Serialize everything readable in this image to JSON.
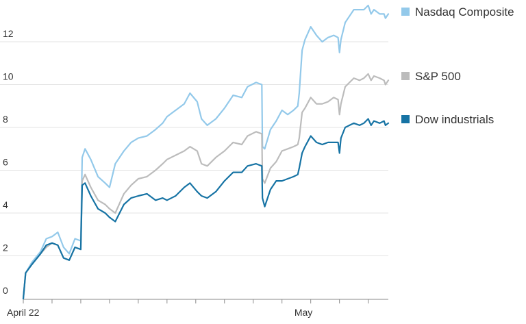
{
  "chart_data": {
    "type": "line",
    "title": "",
    "xlabel": "",
    "ylabel": "",
    "ylim": [
      0,
      14
    ],
    "y_ticks": [
      0,
      2,
      4,
      6,
      8,
      10,
      12
    ],
    "y_tick_labels": [
      "0",
      "2",
      "4",
      "6",
      "8",
      "10",
      "12"
    ],
    "x_tick_labels": [
      "April 22",
      "May"
    ],
    "grid": true,
    "legend_position": "right",
    "x_unit": "trading sessions since April 22 (hourly samples)",
    "series": [
      {
        "name": "Nasdaq Composite",
        "color": "#93c9ea",
        "points": [
          [
            0,
            0
          ],
          [
            0.08,
            1.2
          ],
          [
            0.3,
            1.7
          ],
          [
            0.6,
            2.2
          ],
          [
            0.8,
            2.8
          ],
          [
            1.0,
            2.9
          ],
          [
            1.2,
            3.1
          ],
          [
            1.4,
            2.4
          ],
          [
            1.6,
            2.1
          ],
          [
            1.8,
            2.8
          ],
          [
            2.0,
            2.7
          ],
          [
            2.05,
            6.6
          ],
          [
            2.15,
            7.0
          ],
          [
            2.35,
            6.5
          ],
          [
            2.6,
            5.7
          ],
          [
            2.85,
            5.4
          ],
          [
            3.0,
            5.2
          ],
          [
            3.2,
            6.3
          ],
          [
            3.5,
            6.9
          ],
          [
            3.75,
            7.3
          ],
          [
            4.0,
            7.5
          ],
          [
            4.3,
            7.6
          ],
          [
            4.6,
            7.9
          ],
          [
            4.85,
            8.2
          ],
          [
            5.0,
            8.5
          ],
          [
            5.3,
            8.8
          ],
          [
            5.6,
            9.1
          ],
          [
            5.8,
            9.6
          ],
          [
            6.05,
            9.2
          ],
          [
            6.2,
            8.4
          ],
          [
            6.4,
            8.1
          ],
          [
            6.7,
            8.4
          ],
          [
            7.0,
            8.9
          ],
          [
            7.3,
            9.5
          ],
          [
            7.6,
            9.4
          ],
          [
            7.8,
            9.9
          ],
          [
            8.1,
            10.1
          ],
          [
            8.3,
            10.0
          ],
          [
            8.32,
            7.1
          ],
          [
            8.4,
            7.0
          ],
          [
            8.6,
            7.9
          ],
          [
            8.8,
            8.3
          ],
          [
            9.0,
            8.8
          ],
          [
            9.2,
            8.6
          ],
          [
            9.4,
            8.8
          ],
          [
            9.55,
            9.0
          ],
          [
            9.6,
            9.6
          ],
          [
            9.7,
            11.6
          ],
          [
            9.8,
            12.1
          ],
          [
            10.0,
            12.7
          ],
          [
            10.2,
            12.3
          ],
          [
            10.4,
            12.0
          ],
          [
            10.6,
            12.2
          ],
          [
            10.8,
            12.3
          ],
          [
            10.95,
            12.2
          ],
          [
            11.0,
            11.5
          ],
          [
            11.05,
            12.1
          ],
          [
            11.2,
            12.9
          ],
          [
            11.5,
            13.5
          ],
          [
            11.7,
            13.5
          ],
          [
            11.85,
            13.5
          ],
          [
            12.0,
            13.7
          ],
          [
            12.1,
            13.3
          ],
          [
            12.2,
            13.5
          ],
          [
            12.4,
            13.3
          ],
          [
            12.55,
            13.3
          ],
          [
            12.6,
            13.1
          ],
          [
            12.7,
            13.3
          ]
        ]
      },
      {
        "name": "S&P 500",
        "color": "#bcbcbc",
        "points": [
          [
            0,
            0
          ],
          [
            0.08,
            1.2
          ],
          [
            0.3,
            1.6
          ],
          [
            0.6,
            2.1
          ],
          [
            0.8,
            2.4
          ],
          [
            1.0,
            2.6
          ],
          [
            1.2,
            2.5
          ],
          [
            1.4,
            1.9
          ],
          [
            1.6,
            1.8
          ],
          [
            1.8,
            2.4
          ],
          [
            2.0,
            2.3
          ],
          [
            2.05,
            5.5
          ],
          [
            2.15,
            5.8
          ],
          [
            2.35,
            5.2
          ],
          [
            2.6,
            4.6
          ],
          [
            2.85,
            4.4
          ],
          [
            3.0,
            4.2
          ],
          [
            3.2,
            4.0
          ],
          [
            3.5,
            4.9
          ],
          [
            3.75,
            5.3
          ],
          [
            4.0,
            5.6
          ],
          [
            4.3,
            5.7
          ],
          [
            4.6,
            6.0
          ],
          [
            4.85,
            6.3
          ],
          [
            5.0,
            6.5
          ],
          [
            5.3,
            6.7
          ],
          [
            5.6,
            6.9
          ],
          [
            5.8,
            7.1
          ],
          [
            6.05,
            6.9
          ],
          [
            6.2,
            6.3
          ],
          [
            6.4,
            6.2
          ],
          [
            6.7,
            6.6
          ],
          [
            7.0,
            6.9
          ],
          [
            7.3,
            7.3
          ],
          [
            7.6,
            7.2
          ],
          [
            7.8,
            7.6
          ],
          [
            8.1,
            7.8
          ],
          [
            8.3,
            7.7
          ],
          [
            8.32,
            5.6
          ],
          [
            8.4,
            5.4
          ],
          [
            8.6,
            6.1
          ],
          [
            8.8,
            6.4
          ],
          [
            9.0,
            6.9
          ],
          [
            9.2,
            7.0
          ],
          [
            9.4,
            7.1
          ],
          [
            9.55,
            7.2
          ],
          [
            9.6,
            7.5
          ],
          [
            9.7,
            8.7
          ],
          [
            9.8,
            8.9
          ],
          [
            10.0,
            9.4
          ],
          [
            10.2,
            9.1
          ],
          [
            10.4,
            9.1
          ],
          [
            10.6,
            9.2
          ],
          [
            10.8,
            9.4
          ],
          [
            10.95,
            9.3
          ],
          [
            11.0,
            8.6
          ],
          [
            11.05,
            9.1
          ],
          [
            11.2,
            9.9
          ],
          [
            11.5,
            10.3
          ],
          [
            11.7,
            10.2
          ],
          [
            11.85,
            10.3
          ],
          [
            12.0,
            10.5
          ],
          [
            12.1,
            10.2
          ],
          [
            12.2,
            10.4
          ],
          [
            12.4,
            10.3
          ],
          [
            12.55,
            10.2
          ],
          [
            12.6,
            10.0
          ],
          [
            12.7,
            10.2
          ]
        ]
      },
      {
        "name": "Dow industrials",
        "color": "#1673a4",
        "points": [
          [
            0,
            0
          ],
          [
            0.08,
            1.2
          ],
          [
            0.3,
            1.6
          ],
          [
            0.6,
            2.1
          ],
          [
            0.8,
            2.5
          ],
          [
            1.0,
            2.6
          ],
          [
            1.2,
            2.5
          ],
          [
            1.4,
            1.9
          ],
          [
            1.6,
            1.8
          ],
          [
            1.8,
            2.4
          ],
          [
            2.0,
            2.3
          ],
          [
            2.05,
            5.3
          ],
          [
            2.15,
            5.4
          ],
          [
            2.35,
            4.8
          ],
          [
            2.6,
            4.2
          ],
          [
            2.85,
            4.0
          ],
          [
            3.0,
            3.8
          ],
          [
            3.2,
            3.6
          ],
          [
            3.5,
            4.4
          ],
          [
            3.75,
            4.7
          ],
          [
            4.0,
            4.8
          ],
          [
            4.3,
            4.9
          ],
          [
            4.6,
            4.6
          ],
          [
            4.85,
            4.7
          ],
          [
            5.0,
            4.6
          ],
          [
            5.3,
            4.8
          ],
          [
            5.6,
            5.2
          ],
          [
            5.8,
            5.4
          ],
          [
            6.05,
            5.0
          ],
          [
            6.2,
            4.8
          ],
          [
            6.4,
            4.7
          ],
          [
            6.7,
            5.0
          ],
          [
            7.0,
            5.5
          ],
          [
            7.3,
            5.9
          ],
          [
            7.6,
            5.9
          ],
          [
            7.8,
            6.2
          ],
          [
            8.1,
            6.3
          ],
          [
            8.3,
            6.2
          ],
          [
            8.32,
            4.7
          ],
          [
            8.4,
            4.3
          ],
          [
            8.6,
            5.1
          ],
          [
            8.8,
            5.5
          ],
          [
            9.0,
            5.5
          ],
          [
            9.2,
            5.6
          ],
          [
            9.4,
            5.7
          ],
          [
            9.55,
            5.8
          ],
          [
            9.6,
            6.1
          ],
          [
            9.7,
            6.8
          ],
          [
            9.8,
            7.1
          ],
          [
            10.0,
            7.6
          ],
          [
            10.2,
            7.3
          ],
          [
            10.4,
            7.2
          ],
          [
            10.6,
            7.3
          ],
          [
            10.8,
            7.3
          ],
          [
            10.95,
            7.3
          ],
          [
            11.0,
            6.8
          ],
          [
            11.05,
            7.5
          ],
          [
            11.2,
            8.0
          ],
          [
            11.5,
            8.2
          ],
          [
            11.7,
            8.1
          ],
          [
            11.85,
            8.2
          ],
          [
            12.0,
            8.4
          ],
          [
            12.1,
            8.1
          ],
          [
            12.2,
            8.3
          ],
          [
            12.4,
            8.2
          ],
          [
            12.55,
            8.3
          ],
          [
            12.6,
            8.1
          ],
          [
            12.7,
            8.2
          ]
        ]
      }
    ]
  }
}
